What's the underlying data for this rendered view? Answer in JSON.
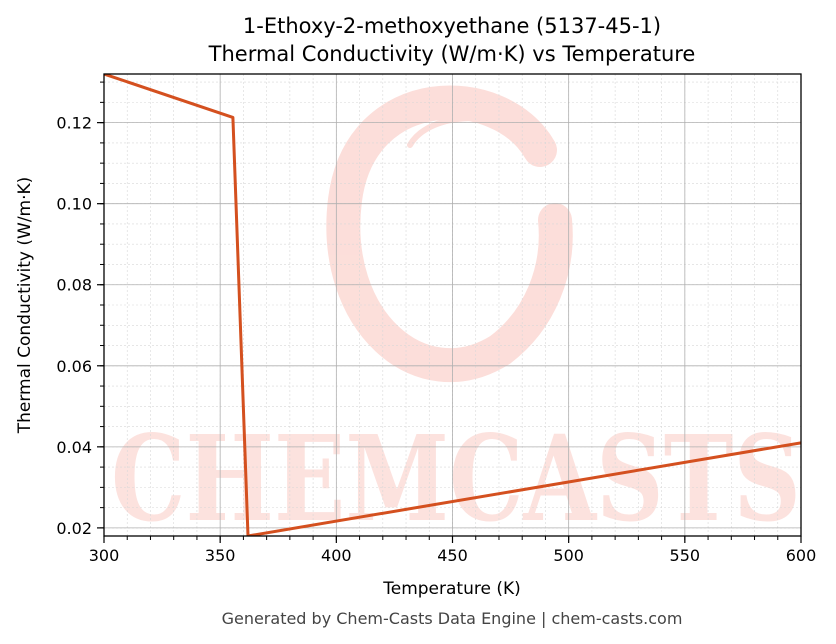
{
  "chart_data": {
    "type": "line",
    "title": "1-Ethoxy-2-methoxyethane (5137-45-1)",
    "subtitle": "Thermal Conductivity (W/m·K) vs Temperature",
    "xlabel": "Temperature (K)",
    "ylabel": "Thermal Conductivity (W/m·K)",
    "xlim": [
      300,
      600
    ],
    "ylim": [
      0.018,
      0.132
    ],
    "xticks": [
      300,
      350,
      400,
      450,
      500,
      550,
      600
    ],
    "xtick_labels": [
      "300",
      "350",
      "400",
      "450",
      "500",
      "550",
      "600"
    ],
    "yticks": [
      0.02,
      0.04,
      0.06,
      0.08,
      0.1,
      0.12
    ],
    "ytick_labels": [
      "0.02",
      "0.04",
      "0.06",
      "0.08",
      "0.10",
      "0.12"
    ],
    "grid": true,
    "series": [
      {
        "color": "#d4501f",
        "x": [
          300,
          355.5,
          362,
          600
        ],
        "y": [
          0.132,
          0.1213,
          0.018,
          0.041
        ]
      }
    ]
  },
  "watermark": {
    "text": "CHEMCASTS",
    "color": "#fcd9d4"
  },
  "footer": {
    "text": "Generated by Chem-Casts Data Engine | chem-casts.com"
  }
}
